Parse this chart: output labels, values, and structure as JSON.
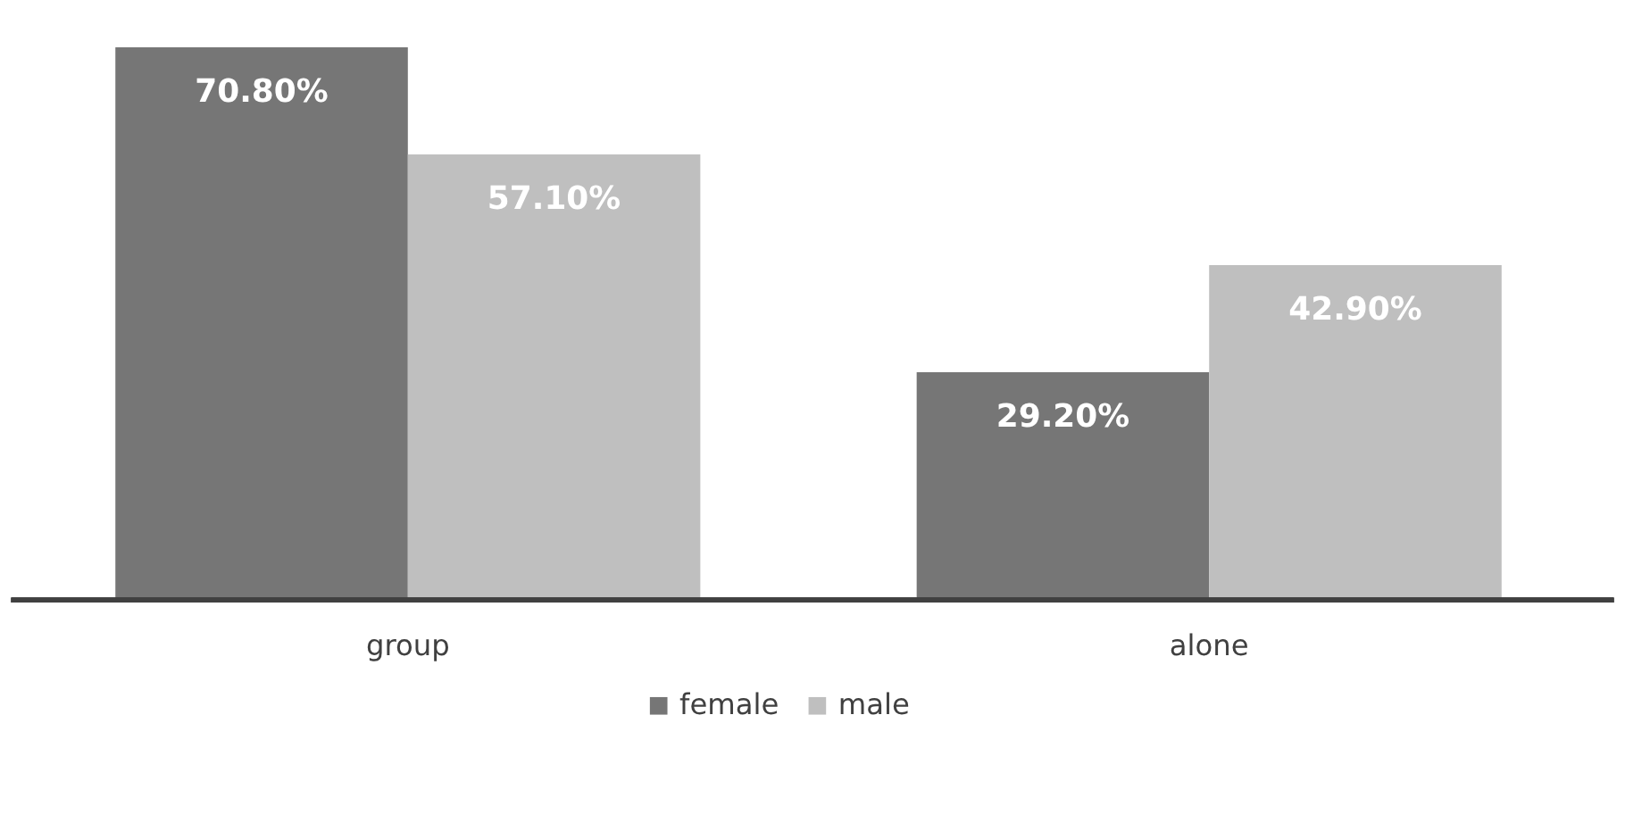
{
  "chart_data": {
    "type": "bar",
    "categories": [
      "group",
      "alone"
    ],
    "series": [
      {
        "name": "female",
        "color": "#767676",
        "values": [
          70.8,
          29.2
        ],
        "value_labels": [
          "70.80%",
          "29.20%"
        ]
      },
      {
        "name": "male",
        "color": "#bfbfbf",
        "values": [
          57.1,
          42.9
        ],
        "value_labels": [
          "57.10%",
          "42.90%"
        ]
      }
    ],
    "legend": "bottom",
    "grid": false
  }
}
